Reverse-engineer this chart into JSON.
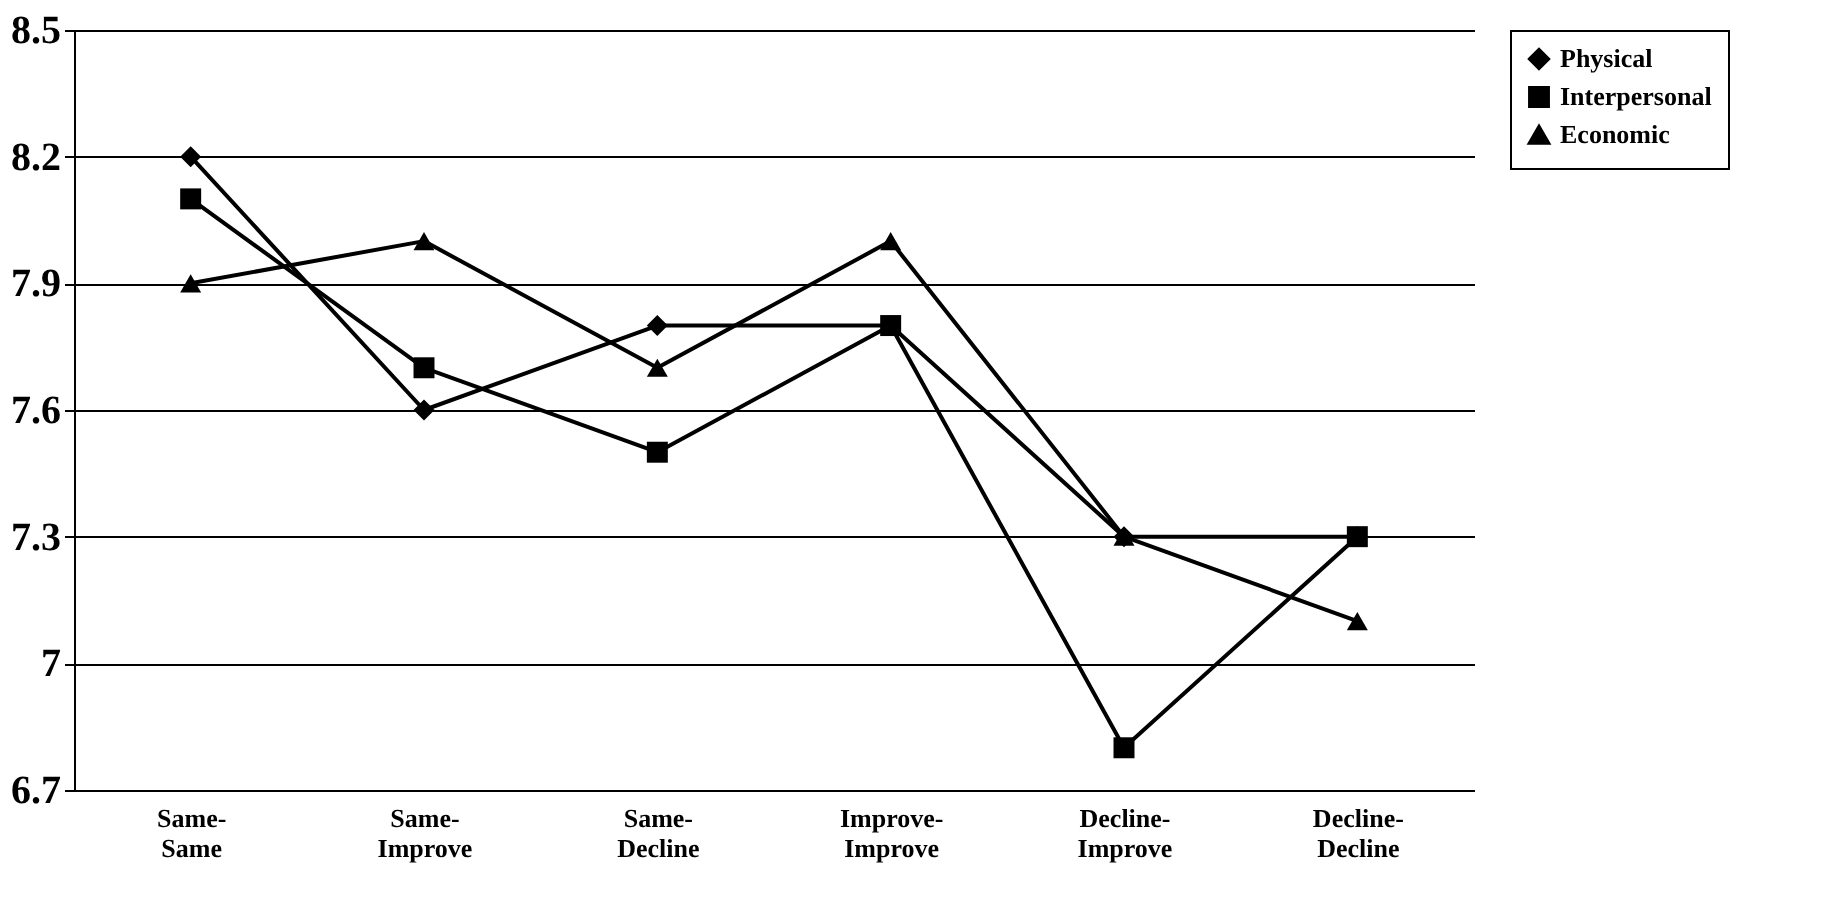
{
  "chart_data": {
    "type": "line",
    "categories": [
      "Same-Same",
      "Same-Improve",
      "Same-Decline",
      "Improve-Improve",
      "Decline-Improve",
      "Decline-Decline"
    ],
    "series": [
      {
        "name": "Physical",
        "color": "#000000",
        "marker": "diamond",
        "values": [
          8.2,
          7.6,
          7.8,
          7.8,
          7.3,
          7.3
        ]
      },
      {
        "name": "Interpersonal",
        "color": "#000000",
        "marker": "square",
        "values": [
          8.1,
          7.7,
          7.5,
          7.8,
          6.8,
          7.3
        ]
      },
      {
        "name": "Economic",
        "color": "#000000",
        "marker": "triangle",
        "values": [
          7.9,
          8.0,
          7.7,
          8.0,
          7.3,
          7.1
        ]
      }
    ],
    "ylim": [
      6.7,
      8.5
    ],
    "yticks": [
      6.7,
      7,
      7.3,
      7.6,
      7.9,
      8.2,
      8.5
    ],
    "grid": "y",
    "legend": "right",
    "line_style": "solid"
  }
}
